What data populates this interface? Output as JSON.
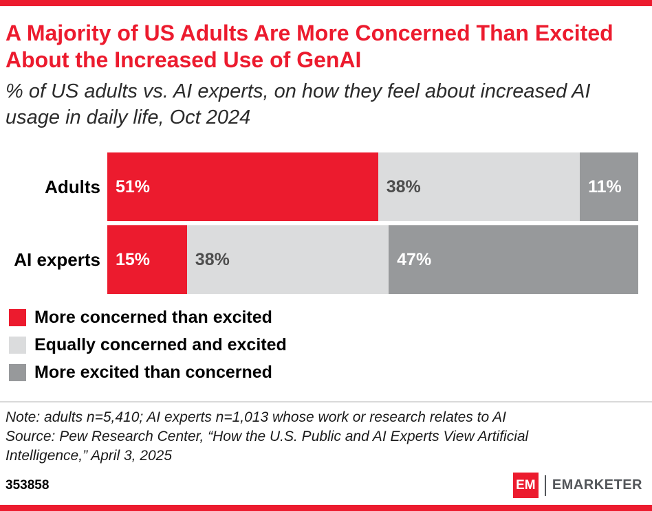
{
  "colors": {
    "accent_red": "#EC1B2E",
    "light_gray": "#DBDCDD",
    "dark_gray": "#97999B",
    "divider": "#D9D9D9"
  },
  "header": {
    "title": "A Majority of US Adults Are More Concerned Than Excited About the Increased Use of GenAI",
    "subtitle": "% of US adults vs. AI experts, on how they feel about increased AI usage in daily life, Oct 2024"
  },
  "chart_data": {
    "type": "bar",
    "orientation": "horizontal",
    "stacked": true,
    "grid": false,
    "xlim": [
      0,
      100
    ],
    "legend_position": "bottom-left",
    "categories": [
      "Adults",
      "AI experts"
    ],
    "series": [
      {
        "name": "More concerned than excited",
        "color": "#EC1B2E",
        "label_color": "#FFFFFF",
        "values": [
          51,
          15
        ]
      },
      {
        "name": "Equally concerned and excited",
        "color": "#DBDCDD",
        "label_color": "#4D4D4D",
        "values": [
          38,
          38
        ]
      },
      {
        "name": "More excited than concerned",
        "color": "#97999B",
        "label_color": "#FFFFFF",
        "values": [
          11,
          47
        ]
      }
    ],
    "value_labels": [
      [
        "51%",
        "38%",
        "11%"
      ],
      [
        "15%",
        "38%",
        "47%"
      ]
    ]
  },
  "legend": {
    "items": [
      {
        "label": "More concerned than excited",
        "color": "#EC1B2E"
      },
      {
        "label": "Equally concerned and excited",
        "color": "#DBDCDD"
      },
      {
        "label": "More excited than concerned",
        "color": "#97999B"
      }
    ]
  },
  "footnote": {
    "note": "Note: adults n=5,410; AI experts n=1,013 whose work or research relates to AI",
    "source": "Source: Pew Research Center, “How the U.S. Public and AI Experts View Artificial Intelligence,” April 3, 2025"
  },
  "footer": {
    "chart_number": "353858",
    "logo_em": "EM",
    "logo_text": "EMARKETER"
  }
}
